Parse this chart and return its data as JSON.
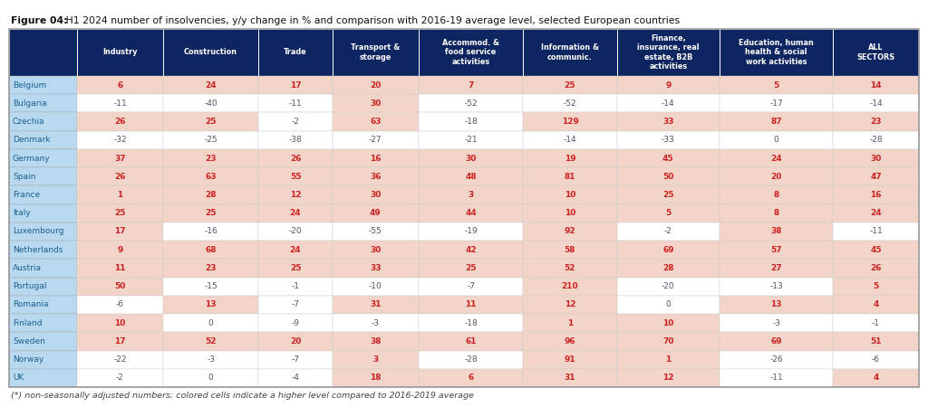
{
  "title_bold": "Figure 04:",
  "title_normal": " H1 2024 number of insolvencies, y/y change in % and comparison with 2016-19 average level, selected European countries",
  "footnote": "(*) non-seasonally adjusted numbers; colored cells indicate a higher level compared to 2016-2019 average",
  "col_headers": [
    "Industry",
    "Construction",
    "Trade",
    "Transport &\nstorage",
    "Accommod. &\nfood service\nactivities",
    "Information &\ncommunic.",
    "Finance,\ninsurance, real\nestate, B2B\nactivities",
    "Education, human\nhealth & social\nwork activities",
    "ALL\nSECTORS"
  ],
  "row_labels": [
    "Belgium",
    "Bulgaria",
    "Czechia",
    "Denmark",
    "Germany",
    "Spain",
    "France",
    "Italy",
    "Luxembourg",
    "Netherlands",
    "Austria",
    "Portugal",
    "Romania",
    "Finland",
    "Sweden",
    "Norway",
    "UK"
  ],
  "data": [
    [
      6,
      24,
      17,
      20,
      7,
      25,
      9,
      5,
      14
    ],
    [
      -11,
      -40,
      -11,
      30,
      -52,
      -52,
      -14,
      -17,
      -14
    ],
    [
      26,
      25,
      -2,
      63,
      -18,
      129,
      33,
      87,
      23
    ],
    [
      -32,
      -25,
      -38,
      -27,
      -21,
      -14,
      -33,
      0,
      -28
    ],
    [
      37,
      23,
      26,
      16,
      30,
      19,
      45,
      24,
      30
    ],
    [
      26,
      63,
      55,
      36,
      48,
      81,
      50,
      20,
      47
    ],
    [
      1,
      28,
      12,
      30,
      3,
      10,
      25,
      8,
      16
    ],
    [
      25,
      25,
      24,
      49,
      44,
      10,
      5,
      8,
      24
    ],
    [
      17,
      -16,
      -20,
      -55,
      -19,
      92,
      -2,
      38,
      -11
    ],
    [
      9,
      68,
      24,
      30,
      42,
      58,
      69,
      57,
      45
    ],
    [
      11,
      23,
      25,
      33,
      25,
      52,
      28,
      27,
      26
    ],
    [
      50,
      -15,
      -1,
      -10,
      -7,
      210,
      -20,
      -13,
      5
    ],
    [
      -6,
      13,
      -7,
      31,
      11,
      12,
      0,
      13,
      4
    ],
    [
      10,
      0,
      -9,
      -3,
      -18,
      1,
      10,
      -3,
      -1
    ],
    [
      17,
      52,
      20,
      38,
      61,
      96,
      70,
      69,
      51
    ],
    [
      -22,
      -3,
      -7,
      3,
      -28,
      91,
      1,
      -26,
      -6
    ],
    [
      -2,
      0,
      -4,
      18,
      6,
      31,
      12,
      -11,
      4
    ]
  ],
  "highlighted": [
    [
      true,
      true,
      true,
      true,
      true,
      true,
      true,
      true,
      true
    ],
    [
      false,
      false,
      false,
      true,
      false,
      false,
      false,
      false,
      false
    ],
    [
      true,
      true,
      false,
      true,
      false,
      true,
      true,
      true,
      true
    ],
    [
      false,
      false,
      false,
      false,
      false,
      false,
      false,
      false,
      false
    ],
    [
      true,
      true,
      true,
      true,
      true,
      true,
      true,
      true,
      true
    ],
    [
      true,
      true,
      true,
      true,
      true,
      true,
      true,
      true,
      true
    ],
    [
      true,
      true,
      true,
      true,
      true,
      true,
      true,
      true,
      true
    ],
    [
      true,
      true,
      true,
      true,
      true,
      true,
      true,
      true,
      true
    ],
    [
      true,
      false,
      false,
      false,
      false,
      true,
      false,
      true,
      false
    ],
    [
      true,
      true,
      true,
      true,
      true,
      true,
      true,
      true,
      true
    ],
    [
      true,
      true,
      true,
      true,
      true,
      true,
      true,
      true,
      true
    ],
    [
      true,
      false,
      false,
      false,
      false,
      true,
      false,
      false,
      true
    ],
    [
      false,
      true,
      false,
      true,
      true,
      true,
      false,
      true,
      true
    ],
    [
      true,
      false,
      false,
      false,
      false,
      true,
      true,
      false,
      false
    ],
    [
      true,
      true,
      true,
      true,
      true,
      true,
      true,
      true,
      true
    ],
    [
      false,
      false,
      false,
      true,
      false,
      true,
      true,
      false,
      false
    ],
    [
      false,
      false,
      false,
      true,
      true,
      true,
      true,
      false,
      true
    ]
  ],
  "header_bg": "#0d2560",
  "header_text": "#ffffff",
  "row_label_bg": "#b8d9f0",
  "row_label_text": "#1a6090",
  "highlight_bg": "#f2d5c8",
  "white_bg": "#ffffff",
  "pos_text": "#cc2222",
  "neg_text": "#555566",
  "outer_bg": "#ffffff",
  "border_color": "#999999",
  "cell_border": "#cccccc"
}
